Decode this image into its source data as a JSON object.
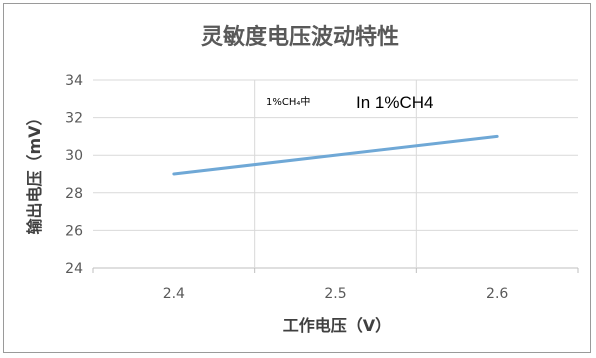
{
  "chart_data": {
    "type": "line",
    "title": "灵敏度电压波动特性",
    "xlabel": "工作电压（V）",
    "ylabel": "输出电压（mV）",
    "ylim": [
      24,
      34
    ],
    "y_ticks": [
      "24",
      "26",
      "28",
      "30",
      "32",
      "34"
    ],
    "x_ticks": [
      "2.4",
      "2.5",
      "2.6"
    ],
    "grid": true,
    "series": [
      {
        "x": [
          2.4,
          2.6
        ],
        "y": [
          29.0,
          31.0
        ],
        "color": "#6fa8d6"
      }
    ],
    "annotations": [
      "1%CH₄中",
      "In 1%CH4"
    ]
  }
}
